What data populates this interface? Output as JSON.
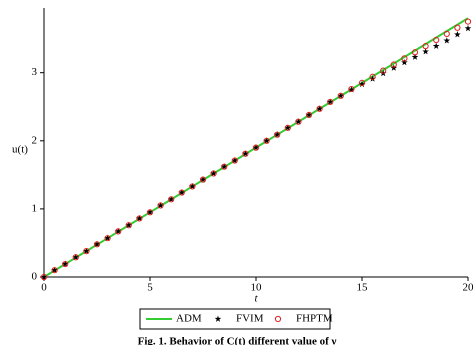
{
  "chart_data": {
    "type": "line",
    "xlabel": "t",
    "ylabel": "u(t)",
    "caption": "Fig. 1. Behavior of C(t) different value of ν",
    "xlim": [
      0,
      20
    ],
    "ylim": [
      0,
      3.95
    ],
    "xticks": [
      0,
      5,
      10,
      15,
      20
    ],
    "yticks": [
      0,
      1,
      2,
      3
    ],
    "series": [
      {
        "name": "ADM",
        "color": "#33cc33",
        "style": "line",
        "x": [
          0,
          1,
          2,
          3,
          4,
          5,
          6,
          7,
          8,
          9,
          10,
          11,
          12,
          13,
          14,
          15,
          16,
          17,
          18,
          19,
          20
        ],
        "values": [
          0,
          0.19,
          0.38,
          0.57,
          0.76,
          0.95,
          1.14,
          1.33,
          1.52,
          1.71,
          1.9,
          2.09,
          2.28,
          2.47,
          2.66,
          2.85,
          3.04,
          3.23,
          3.42,
          3.61,
          3.8
        ]
      },
      {
        "name": "FVIM",
        "color": "#000000",
        "style": "star",
        "x": [
          0,
          0.5,
          1,
          1.5,
          2,
          2.5,
          3,
          3.5,
          4,
          4.5,
          5,
          5.5,
          6,
          6.5,
          7,
          7.5,
          8,
          8.5,
          9,
          9.5,
          10,
          10.5,
          11,
          11.5,
          12,
          12.5,
          13,
          13.5,
          14,
          14.5,
          15,
          15.5,
          16,
          16.5,
          17,
          17.5,
          18,
          18.5,
          19,
          19.5,
          20
        ],
        "values": [
          0,
          0.1,
          0.19,
          0.29,
          0.38,
          0.48,
          0.57,
          0.67,
          0.76,
          0.86,
          0.95,
          1.05,
          1.14,
          1.24,
          1.33,
          1.43,
          1.52,
          1.62,
          1.71,
          1.81,
          1.9,
          2.0,
          2.09,
          2.19,
          2.28,
          2.38,
          2.47,
          2.57,
          2.66,
          2.75,
          2.83,
          2.91,
          2.99,
          3.07,
          3.15,
          3.23,
          3.31,
          3.39,
          3.47,
          3.56,
          3.65
        ]
      },
      {
        "name": "FHPTM",
        "color": "#e02020",
        "style": "circle",
        "x": [
          0,
          0.5,
          1,
          1.5,
          2,
          2.5,
          3,
          3.5,
          4,
          4.5,
          5,
          5.5,
          6,
          6.5,
          7,
          7.5,
          8,
          8.5,
          9,
          9.5,
          10,
          10.5,
          11,
          11.5,
          12,
          12.5,
          13,
          13.5,
          14,
          14.5,
          15,
          15.5,
          16,
          16.5,
          17,
          17.5,
          18,
          18.5,
          19,
          19.5,
          20
        ],
        "values": [
          0,
          0.1,
          0.19,
          0.29,
          0.38,
          0.48,
          0.57,
          0.67,
          0.76,
          0.86,
          0.95,
          1.05,
          1.14,
          1.24,
          1.33,
          1.43,
          1.52,
          1.62,
          1.71,
          1.81,
          1.9,
          2.0,
          2.09,
          2.19,
          2.28,
          2.38,
          2.47,
          2.57,
          2.66,
          2.76,
          2.85,
          2.94,
          3.03,
          3.12,
          3.21,
          3.3,
          3.39,
          3.48,
          3.57,
          3.66,
          3.75
        ]
      }
    ]
  }
}
